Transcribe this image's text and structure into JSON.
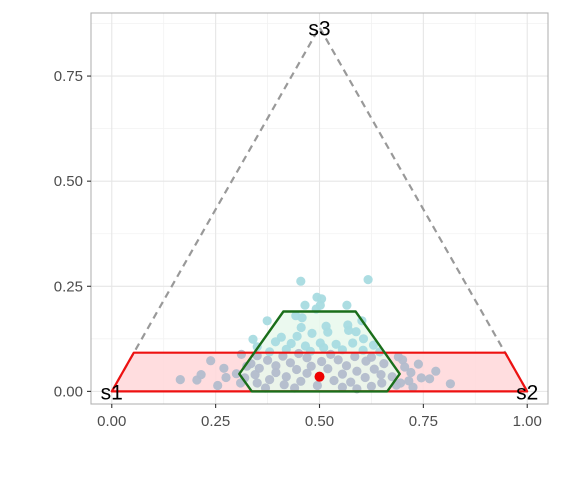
{
  "chart_data": {
    "type": "scatter",
    "xlim": [
      -0.05,
      1.05
    ],
    "ylim": [
      -0.03,
      0.9
    ],
    "x_ticks": [
      {
        "value": 0.0,
        "label": "0.00"
      },
      {
        "value": 0.25,
        "label": "0.25"
      },
      {
        "value": 0.5,
        "label": "0.50"
      },
      {
        "value": 0.75,
        "label": "0.75"
      },
      {
        "value": 1.0,
        "label": "1.00"
      }
    ],
    "y_ticks": [
      {
        "value": 0.0,
        "label": "0.00"
      },
      {
        "value": 0.25,
        "label": "0.25"
      },
      {
        "value": 0.5,
        "label": "0.50"
      },
      {
        "value": 0.75,
        "label": "0.75"
      }
    ],
    "grid": true,
    "simplex": {
      "vertices": [
        {
          "label": "s1",
          "x": 0.0,
          "y": 0.0
        },
        {
          "label": "s2",
          "x": 1.0,
          "y": 0.0
        },
        {
          "label": "s3",
          "x": 0.5,
          "y": 0.866
        }
      ],
      "style": "dashed",
      "color": "#999999"
    },
    "red_region": {
      "points": [
        [
          0.0,
          0.0
        ],
        [
          1.0,
          0.0
        ],
        [
          0.947,
          0.092
        ],
        [
          0.053,
          0.092
        ]
      ],
      "fill": "#ffd9dc",
      "stroke": "#ee1111"
    },
    "green_region": {
      "points": [
        [
          0.337,
          0.0
        ],
        [
          0.663,
          0.0
        ],
        [
          0.693,
          0.0416
        ],
        [
          0.587,
          0.19
        ],
        [
          0.413,
          0.19
        ],
        [
          0.307,
          0.0416
        ]
      ],
      "fill": "#e8f8ec",
      "stroke": "#1a6e1a"
    },
    "center_point": {
      "x": 0.5,
      "y": 0.035,
      "color": "#ee0000"
    },
    "points_color_inside": "#a8dbe0",
    "points_color_outside": "#b3bccc",
    "points": [
      [
        0.455,
        0.262
      ],
      [
        0.617,
        0.266
      ],
      [
        0.494,
        0.224
      ],
      [
        0.505,
        0.22
      ],
      [
        0.465,
        0.205
      ],
      [
        0.502,
        0.205
      ],
      [
        0.566,
        0.205
      ],
      [
        0.492,
        0.196
      ],
      [
        0.443,
        0.18
      ],
      [
        0.458,
        0.175
      ],
      [
        0.374,
        0.168
      ],
      [
        0.602,
        0.168
      ],
      [
        0.516,
        0.155
      ],
      [
        0.568,
        0.158
      ],
      [
        0.456,
        0.152
      ],
      [
        0.52,
        0.141
      ],
      [
        0.57,
        0.145
      ],
      [
        0.588,
        0.142
      ],
      [
        0.446,
        0.131
      ],
      [
        0.482,
        0.138
      ],
      [
        0.408,
        0.129
      ],
      [
        0.606,
        0.125
      ],
      [
        0.34,
        0.124
      ],
      [
        0.394,
        0.118
      ],
      [
        0.432,
        0.114
      ],
      [
        0.502,
        0.115
      ],
      [
        0.54,
        0.112
      ],
      [
        0.58,
        0.115
      ],
      [
        0.466,
        0.108
      ],
      [
        0.51,
        0.104
      ],
      [
        0.35,
        0.106
      ],
      [
        0.63,
        0.11
      ],
      [
        0.42,
        0.1
      ],
      [
        0.555,
        0.099
      ],
      [
        0.605,
        0.098
      ],
      [
        0.478,
        0.095
      ],
      [
        0.38,
        0.094
      ],
      [
        0.645,
        0.094
      ],
      [
        0.45,
        0.09
      ],
      [
        0.527,
        0.088
      ],
      [
        0.35,
        0.085
      ],
      [
        0.412,
        0.084
      ],
      [
        0.585,
        0.083
      ],
      [
        0.625,
        0.081
      ],
      [
        0.47,
        0.08
      ],
      [
        0.375,
        0.074
      ],
      [
        0.545,
        0.075
      ],
      [
        0.612,
        0.072
      ],
      [
        0.505,
        0.071
      ],
      [
        0.43,
        0.068
      ],
      [
        0.335,
        0.066
      ],
      [
        0.655,
        0.066
      ],
      [
        0.395,
        0.061
      ],
      [
        0.565,
        0.061
      ],
      [
        0.48,
        0.06
      ],
      [
        0.355,
        0.055
      ],
      [
        0.52,
        0.054
      ],
      [
        0.632,
        0.053
      ],
      [
        0.445,
        0.052
      ],
      [
        0.59,
        0.048
      ],
      [
        0.395,
        0.045
      ],
      [
        0.47,
        0.043
      ],
      [
        0.555,
        0.041
      ],
      [
        0.345,
        0.04
      ],
      [
        0.648,
        0.04
      ],
      [
        0.42,
        0.035
      ],
      [
        0.61,
        0.033
      ],
      [
        0.38,
        0.028
      ],
      [
        0.535,
        0.026
      ],
      [
        0.455,
        0.024
      ],
      [
        0.575,
        0.022
      ],
      [
        0.35,
        0.02
      ],
      [
        0.65,
        0.02
      ],
      [
        0.415,
        0.016
      ],
      [
        0.495,
        0.014
      ],
      [
        0.625,
        0.012
      ],
      [
        0.555,
        0.01
      ],
      [
        0.44,
        0.008
      ],
      [
        0.37,
        0.008
      ],
      [
        0.59,
        0.006
      ],
      [
        0.238,
        0.073
      ],
      [
        0.275,
        0.033
      ],
      [
        0.165,
        0.028
      ],
      [
        0.205,
        0.027
      ],
      [
        0.215,
        0.04
      ],
      [
        0.3,
        0.042
      ],
      [
        0.255,
        0.014
      ],
      [
        0.27,
        0.055
      ],
      [
        0.31,
        0.02
      ],
      [
        0.325,
        0.06
      ],
      [
        0.312,
        0.088
      ],
      [
        0.32,
        0.032
      ],
      [
        0.69,
        0.082
      ],
      [
        0.7,
        0.075
      ],
      [
        0.705,
        0.058
      ],
      [
        0.72,
        0.045
      ],
      [
        0.715,
        0.025
      ],
      [
        0.738,
        0.065
      ],
      [
        0.745,
        0.032
      ],
      [
        0.765,
        0.03
      ],
      [
        0.78,
        0.048
      ],
      [
        0.815,
        0.018
      ],
      [
        0.685,
        0.015
      ],
      [
        0.725,
        0.01
      ],
      [
        0.675,
        0.035
      ],
      [
        0.695,
        0.02
      ]
    ]
  }
}
